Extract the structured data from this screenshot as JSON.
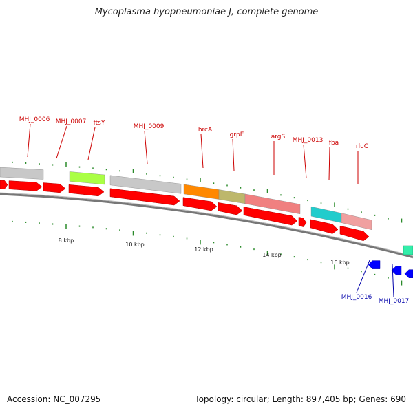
{
  "title": "Mycoplasma hyopneumoniae J, complete genome",
  "footer": {
    "accession_label": "Accession: NC_007295",
    "summary": "Topology: circular; Length: 897,405 bp; Genes: 690"
  },
  "colors": {
    "gene_label_red": "#cc0000",
    "gene_label_blue": "#0000aa",
    "cds_arrow": "#ff0000",
    "reverse_arrow": "#0000ff",
    "backbone": "#777777",
    "tick": "#2a8a2a",
    "cog_gray": "#c8c8c8",
    "cog_lime": "#aaff44",
    "cog_orange": "#ff8800",
    "cog_olive": "#bdb76b",
    "cog_pink": "#f08080",
    "cog_cyan": "#22cccc",
    "cog_salmon": "#f0a0a0",
    "cog_mint": "#33eeaa"
  },
  "scale_labels": [
    "8 kbp",
    "10 kbp",
    "12 kbp",
    "14 kbp",
    "16 kbp"
  ],
  "forward_genes": [
    "MHJ_0006",
    "MHJ_0007",
    "ftsY",
    "MHJ_0009",
    "hrcA",
    "grpE",
    "argS",
    "MHJ_0013",
    "fba",
    "rluC"
  ],
  "reverse_genes": [
    "MHJ_0016",
    "MHJ_0017"
  ]
}
